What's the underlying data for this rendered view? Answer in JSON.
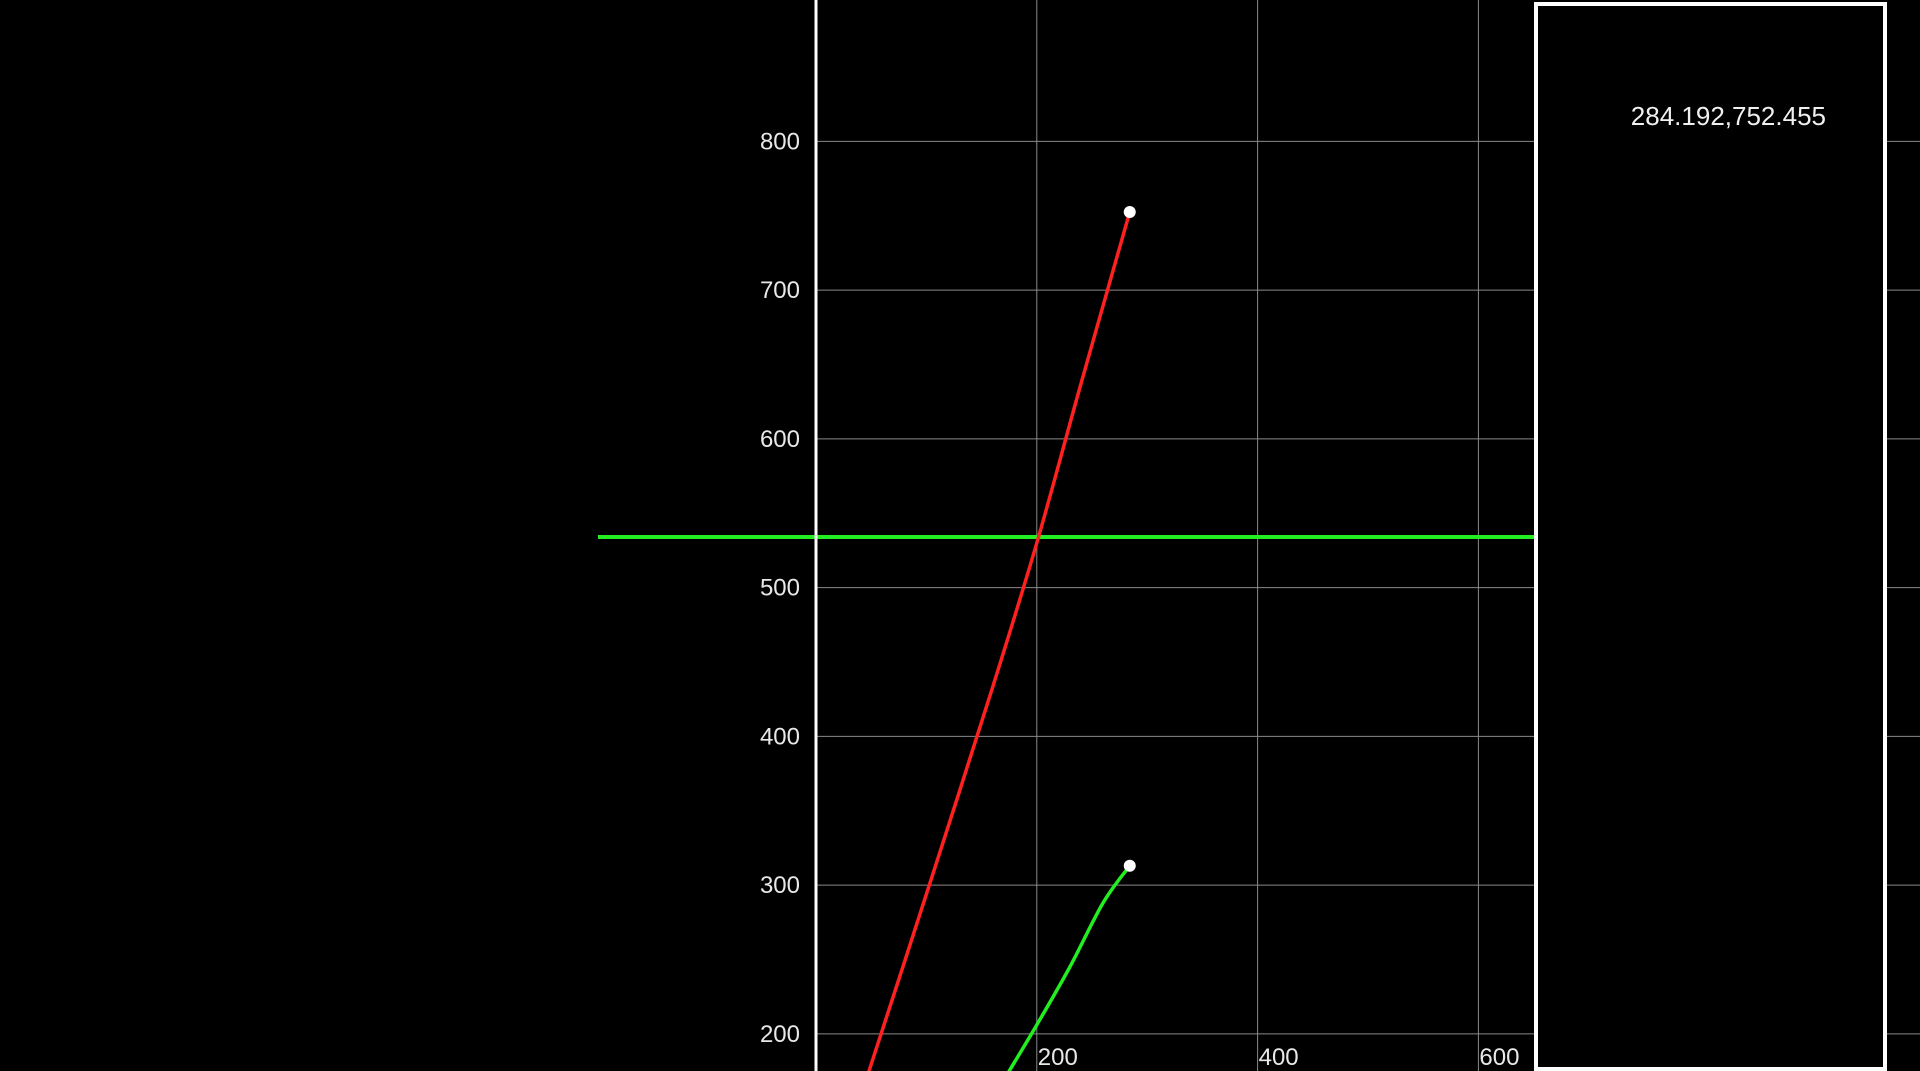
{
  "colors": {
    "background": "#000000",
    "grid": "#8a8a8a",
    "axis": "#ffffff",
    "red_series": "#ff2020",
    "green_series": "#22ee22",
    "point": "#ffffff",
    "panel_border": "#ffffff"
  },
  "readout_panel": {
    "text": "284.192,752.455"
  },
  "chart_data": {
    "type": "line",
    "title": "",
    "xlabel": "",
    "ylabel": "",
    "grid": true,
    "xlim": [
      0,
      1000
    ],
    "ylim": [
      175,
      895
    ],
    "x_ticks": [
      200,
      400,
      600
    ],
    "x_tick_labels": [
      "200",
      "400",
      "600"
    ],
    "y_ticks": [
      200,
      300,
      400,
      500,
      600,
      700,
      800
    ],
    "y_tick_labels": [
      "200",
      "300",
      "400",
      "500",
      "600",
      "700",
      "800"
    ],
    "horizontal_line": {
      "y": 534,
      "color": "#22ee22"
    },
    "series": [
      {
        "color": "#ff2020",
        "x": [
          48,
          80,
          120,
          160,
          200,
          240,
          284.192
        ],
        "y": [
          175,
          248,
          340,
          433,
          530,
          637,
          752.455
        ],
        "end_marker": true
      },
      {
        "color": "#22ee22",
        "x": [
          175,
          200,
          230,
          260,
          284.192
        ],
        "y": [
          175,
          206,
          245,
          288,
          313
        ]
      }
    ],
    "end_points": [
      {
        "x": 284.192,
        "y": 752.455
      },
      {
        "x": 284.192,
        "y": 313
      }
    ]
  }
}
